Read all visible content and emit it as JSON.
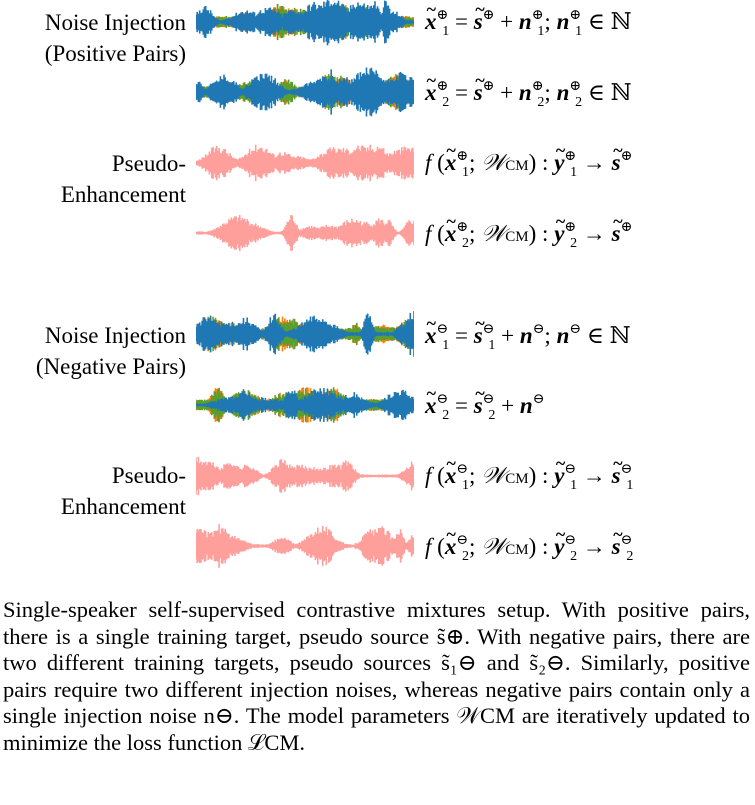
{
  "figure": {
    "rows": [
      {
        "label": "Noise Injection\n(Positive Pairs)",
        "label_lines": [
          "Noise Injection",
          "(Positive Pairs)"
        ]
      },
      {
        "label": "Pseudo-\nEnhancement",
        "label_lines": [
          "Pseudo-",
          "Enhancement"
        ]
      },
      {
        "label": "Noise Injection\n(Negative Pairs)",
        "label_lines": [
          "Noise Injection",
          "(Negative Pairs)"
        ]
      },
      {
        "label": "Pseudo-\nEnhancement",
        "label_lines": [
          "Pseudo-",
          "Enhancement"
        ]
      }
    ],
    "colors": {
      "noise_green": "#5a9e2f",
      "noise_orange": "#ff7f0e",
      "source_blue": "#1f77b4",
      "enhanced_pink": "#ff9f9b"
    },
    "equations": [
      "x̃₁⊕ = s̃⊕ + n₁⊕; n₁⊕ ∈ ℕ",
      "x̃₂⊕ = s̃⊕ + n₂⊕; n₂⊕ ∈ ℕ",
      "f (x̃₁⊕; 𝒲CM) : ỹ₁⊕ → s̃⊕",
      "f (x̃₂⊕; 𝒲CM) : ỹ₂⊕ → s̃⊕",
      "x̃₁⊖ = s̃₁⊖ + n⊖; n⊖ ∈ ℕ",
      "x̃₂⊖ = s̃₂⊖ + n⊖",
      "f (x̃₁⊖; 𝒲CM) : ỹ₁⊖ → s̃₁⊖",
      "f (x̃₂⊖; 𝒲CM) : ỹ₂⊖ → s̃₂⊖"
    ]
  },
  "caption": {
    "text": "Single-speaker self-supervised contrastive mixtures setup. With positive pairs, there is a single training target, pseudo source s̃⊕. With negative pairs, there are two different training targets, pseudo sources s̃₁⊖ and s̃₂⊖. Similarly, positive pairs require two different injection noises, whereas negative pairs contain only a single injection noise n⊖. The model parameters 𝒲CM are iteratively updated to minimize the loss function ℒCM."
  }
}
